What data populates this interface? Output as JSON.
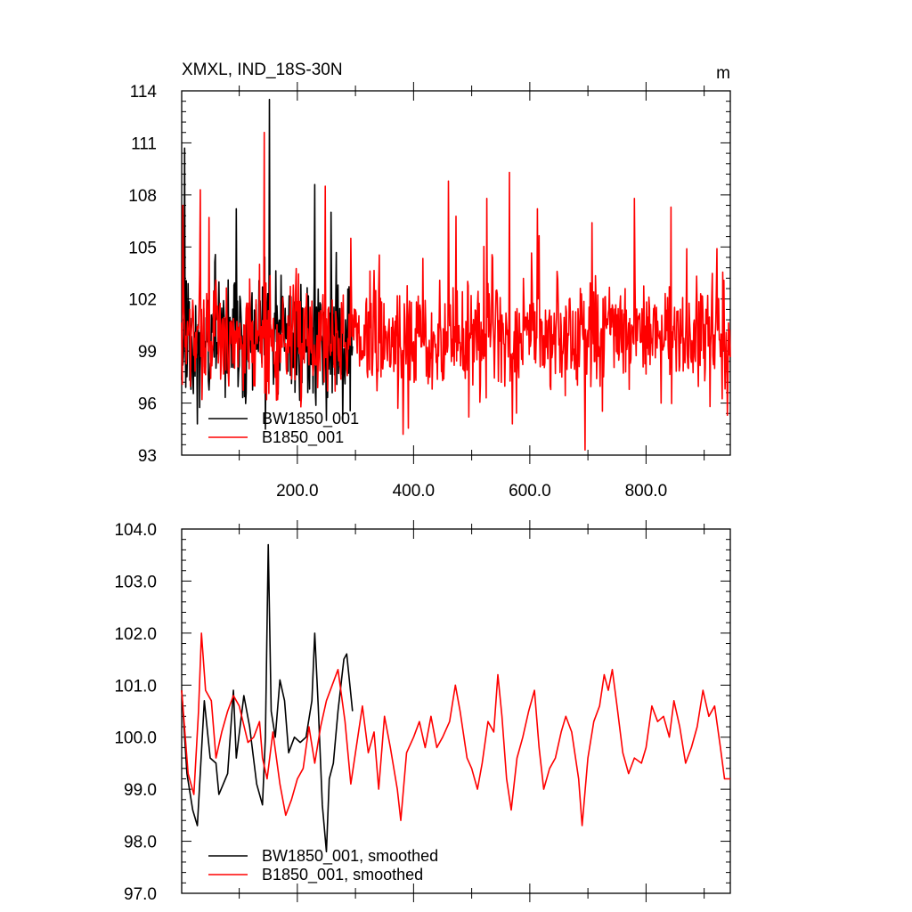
{
  "chart_data": [
    {
      "type": "line",
      "title": "XMXL, IND_18S-30N",
      "units": "m",
      "xlim": [
        1,
        945
      ],
      "ylim": [
        93,
        114
      ],
      "x_ticks": [
        200,
        400,
        600,
        800
      ],
      "x_tick_labels": [
        "200.0",
        "400.0",
        "600.0",
        "800.0"
      ],
      "y_ticks": [
        93,
        96,
        99,
        102,
        105,
        108,
        111,
        114
      ],
      "y_tick_labels": [
        "93",
        "96",
        "99",
        "102",
        "105",
        "108",
        "111",
        "114"
      ],
      "legend_position": "bottom-left",
      "series": [
        {
          "name": "BW1850_001",
          "color": "#000000",
          "x_range": [
            1,
            295
          ],
          "mean": 99.6,
          "spread": 1.8,
          "seed": 11,
          "spikes": [
            [
              6,
              110.7
            ],
            [
              28,
              94.8
            ],
            [
              95,
              107.2
            ],
            [
              145,
              94.5
            ],
            [
              152,
              113.5
            ],
            [
              230,
              108.6
            ],
            [
              250,
              95.0
            ],
            [
              258,
              107.0
            ],
            [
              270,
              102.8
            ]
          ]
        },
        {
          "name": "B1850_001",
          "color": "#ff0000",
          "x_range": [
            1,
            945
          ],
          "mean": 99.8,
          "spread": 1.6,
          "seed": 7,
          "spikes": [
            [
              3,
              107.4
            ],
            [
              33,
              108.3
            ],
            [
              143,
              111.6
            ],
            [
              147,
              96.2
            ],
            [
              248,
              108.5
            ],
            [
              292,
              105.5
            ],
            [
              382,
              94.2
            ],
            [
              460,
              108.8
            ],
            [
              495,
              95.2
            ],
            [
              526,
              107.8
            ],
            [
              565,
              109.3
            ],
            [
              570,
              94.8
            ],
            [
              613,
              107.2
            ],
            [
              695,
              93.3
            ],
            [
              707,
              106.4
            ],
            [
              780,
              107.8
            ],
            [
              826,
              96.0
            ],
            [
              843,
              107.3
            ],
            [
              910,
              95.8
            ],
            [
              922,
              104.9
            ],
            [
              940,
              95.3
            ]
          ]
        }
      ]
    },
    {
      "type": "line",
      "title": "",
      "xlim": [
        1,
        945
      ],
      "ylim": [
        97.0,
        104.0
      ],
      "y_ticks": [
        97.0,
        98.0,
        99.0,
        100.0,
        101.0,
        102.0,
        103.0,
        104.0
      ],
      "y_tick_labels": [
        "97.0",
        "98.0",
        "99.0",
        "100.0",
        "101.0",
        "102.0",
        "103.0",
        "104.0"
      ],
      "legend_position": "bottom-left",
      "series": [
        {
          "name": "BW1850_001, smoothed",
          "color": "#000000",
          "points": [
            [
              1,
              100.9
            ],
            [
              10,
              99.3
            ],
            [
              20,
              98.6
            ],
            [
              28,
              98.3
            ],
            [
              40,
              100.7
            ],
            [
              50,
              99.6
            ],
            [
              60,
              99.5
            ],
            [
              65,
              98.9
            ],
            [
              80,
              99.3
            ],
            [
              90,
              100.9
            ],
            [
              95,
              99.6
            ],
            [
              108,
              100.8
            ],
            [
              118,
              100.2
            ],
            [
              130,
              99.1
            ],
            [
              140,
              98.7
            ],
            [
              145,
              100.0
            ],
            [
              150,
              103.7
            ],
            [
              155,
              100.5
            ],
            [
              162,
              100.0
            ],
            [
              170,
              101.1
            ],
            [
              178,
              100.7
            ],
            [
              185,
              99.7
            ],
            [
              195,
              100.0
            ],
            [
              205,
              99.9
            ],
            [
              215,
              100.0
            ],
            [
              225,
              100.7
            ],
            [
              230,
              102.0
            ],
            [
              236,
              100.6
            ],
            [
              243,
              98.7
            ],
            [
              250,
              97.8
            ],
            [
              255,
              99.2
            ],
            [
              262,
              99.5
            ],
            [
              270,
              100.5
            ],
            [
              280,
              101.5
            ],
            [
              285,
              101.6
            ],
            [
              295,
              100.5
            ]
          ]
        },
        {
          "name": "B1850_001, smoothed",
          "color": "#ff0000",
          "points": [
            [
              1,
              100.9
            ],
            [
              12,
              99.3
            ],
            [
              22,
              98.9
            ],
            [
              30,
              100.5
            ],
            [
              35,
              102.0
            ],
            [
              42,
              100.9
            ],
            [
              52,
              100.7
            ],
            [
              60,
              99.6
            ],
            [
              70,
              100.1
            ],
            [
              80,
              100.5
            ],
            [
              90,
              100.8
            ],
            [
              100,
              100.6
            ],
            [
              115,
              99.9
            ],
            [
              125,
              100.0
            ],
            [
              135,
              100.3
            ],
            [
              140,
              99.6
            ],
            [
              148,
              99.2
            ],
            [
              158,
              100.1
            ],
            [
              170,
              99.1
            ],
            [
              180,
              98.5
            ],
            [
              190,
              98.8
            ],
            [
              200,
              99.2
            ],
            [
              210,
              99.4
            ],
            [
              220,
              100.2
            ],
            [
              230,
              99.5
            ],
            [
              240,
              100.2
            ],
            [
              250,
              100.7
            ],
            [
              260,
              101.0
            ],
            [
              270,
              101.3
            ],
            [
              282,
              100.3
            ],
            [
              292,
              99.1
            ],
            [
              300,
              99.7
            ],
            [
              312,
              100.6
            ],
            [
              322,
              99.7
            ],
            [
              332,
              100.1
            ],
            [
              340,
              99.0
            ],
            [
              350,
              100.4
            ],
            [
              360,
              99.8
            ],
            [
              372,
              99.0
            ],
            [
              378,
              98.4
            ],
            [
              388,
              99.7
            ],
            [
              400,
              100.0
            ],
            [
              410,
              100.3
            ],
            [
              420,
              99.8
            ],
            [
              430,
              100.4
            ],
            [
              440,
              99.8
            ],
            [
              450,
              100.0
            ],
            [
              462,
              100.3
            ],
            [
              472,
              101.0
            ],
            [
              480,
              100.5
            ],
            [
              492,
              99.6
            ],
            [
              500,
              99.4
            ],
            [
              510,
              99.0
            ],
            [
              518,
              99.5
            ],
            [
              528,
              100.3
            ],
            [
              538,
              100.1
            ],
            [
              545,
              101.2
            ],
            [
              552,
              100.4
            ],
            [
              560,
              99.2
            ],
            [
              568,
              98.6
            ],
            [
              578,
              99.6
            ],
            [
              588,
              100.0
            ],
            [
              598,
              100.5
            ],
            [
              608,
              100.9
            ],
            [
              616,
              99.8
            ],
            [
              624,
              99.0
            ],
            [
              634,
              99.4
            ],
            [
              644,
              99.6
            ],
            [
              654,
              100.1
            ],
            [
              662,
              100.4
            ],
            [
              672,
              100.1
            ],
            [
              684,
              99.2
            ],
            [
              690,
              98.3
            ],
            [
              700,
              99.6
            ],
            [
              710,
              100.3
            ],
            [
              720,
              100.6
            ],
            [
              728,
              101.2
            ],
            [
              735,
              100.9
            ],
            [
              742,
              101.3
            ],
            [
              750,
              100.6
            ],
            [
              760,
              99.7
            ],
            [
              770,
              99.3
            ],
            [
              780,
              99.6
            ],
            [
              792,
              99.5
            ],
            [
              800,
              99.8
            ],
            [
              810,
              100.6
            ],
            [
              820,
              100.3
            ],
            [
              830,
              100.4
            ],
            [
              840,
              100.0
            ],
            [
              848,
              100.7
            ],
            [
              858,
              100.2
            ],
            [
              868,
              99.5
            ],
            [
              878,
              99.8
            ],
            [
              888,
              100.2
            ],
            [
              898,
              100.9
            ],
            [
              908,
              100.4
            ],
            [
              918,
              100.6
            ],
            [
              928,
              99.8
            ],
            [
              935,
              99.2
            ],
            [
              945,
              99.2
            ]
          ]
        }
      ]
    }
  ]
}
